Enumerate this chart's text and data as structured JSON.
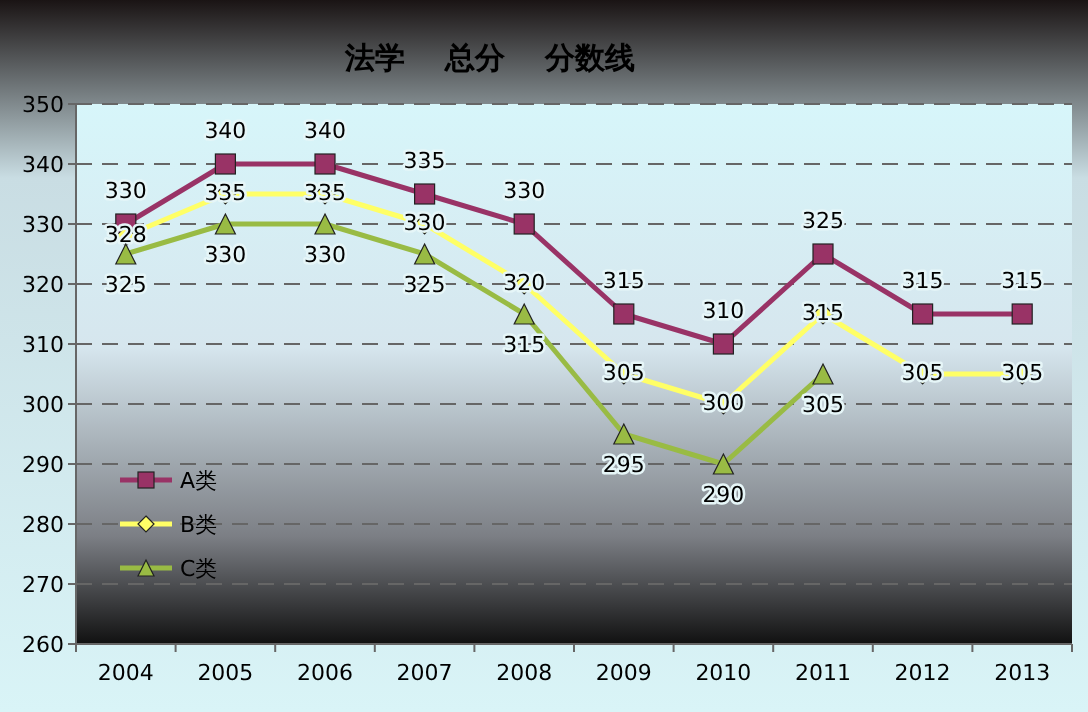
{
  "chart_data": {
    "type": "line",
    "title": "法学　 总分　 分数线",
    "categories": [
      "2004",
      "2005",
      "2006",
      "2007",
      "2008",
      "2009",
      "2010",
      "2011",
      "2012",
      "2013"
    ],
    "series": [
      {
        "name": "A类",
        "color": "#993366",
        "marker": "square",
        "values": [
          330,
          340,
          340,
          335,
          330,
          315,
          310,
          325,
          315,
          315
        ]
      },
      {
        "name": "B类",
        "color": "#ffff66",
        "marker": "diamond",
        "values": [
          328,
          335,
          335,
          330,
          320,
          305,
          300,
          315,
          305,
          305
        ]
      },
      {
        "name": "C类",
        "color": "#99bb44",
        "marker": "triangle",
        "values": [
          325,
          330,
          330,
          325,
          315,
          295,
          290,
          305,
          null,
          null
        ]
      }
    ],
    "ylim": [
      260,
      350
    ],
    "yticks": [
      260,
      270,
      280,
      290,
      300,
      310,
      320,
      330,
      340,
      350
    ],
    "grid": "y",
    "legend": "bottom left",
    "data_labels": true
  }
}
